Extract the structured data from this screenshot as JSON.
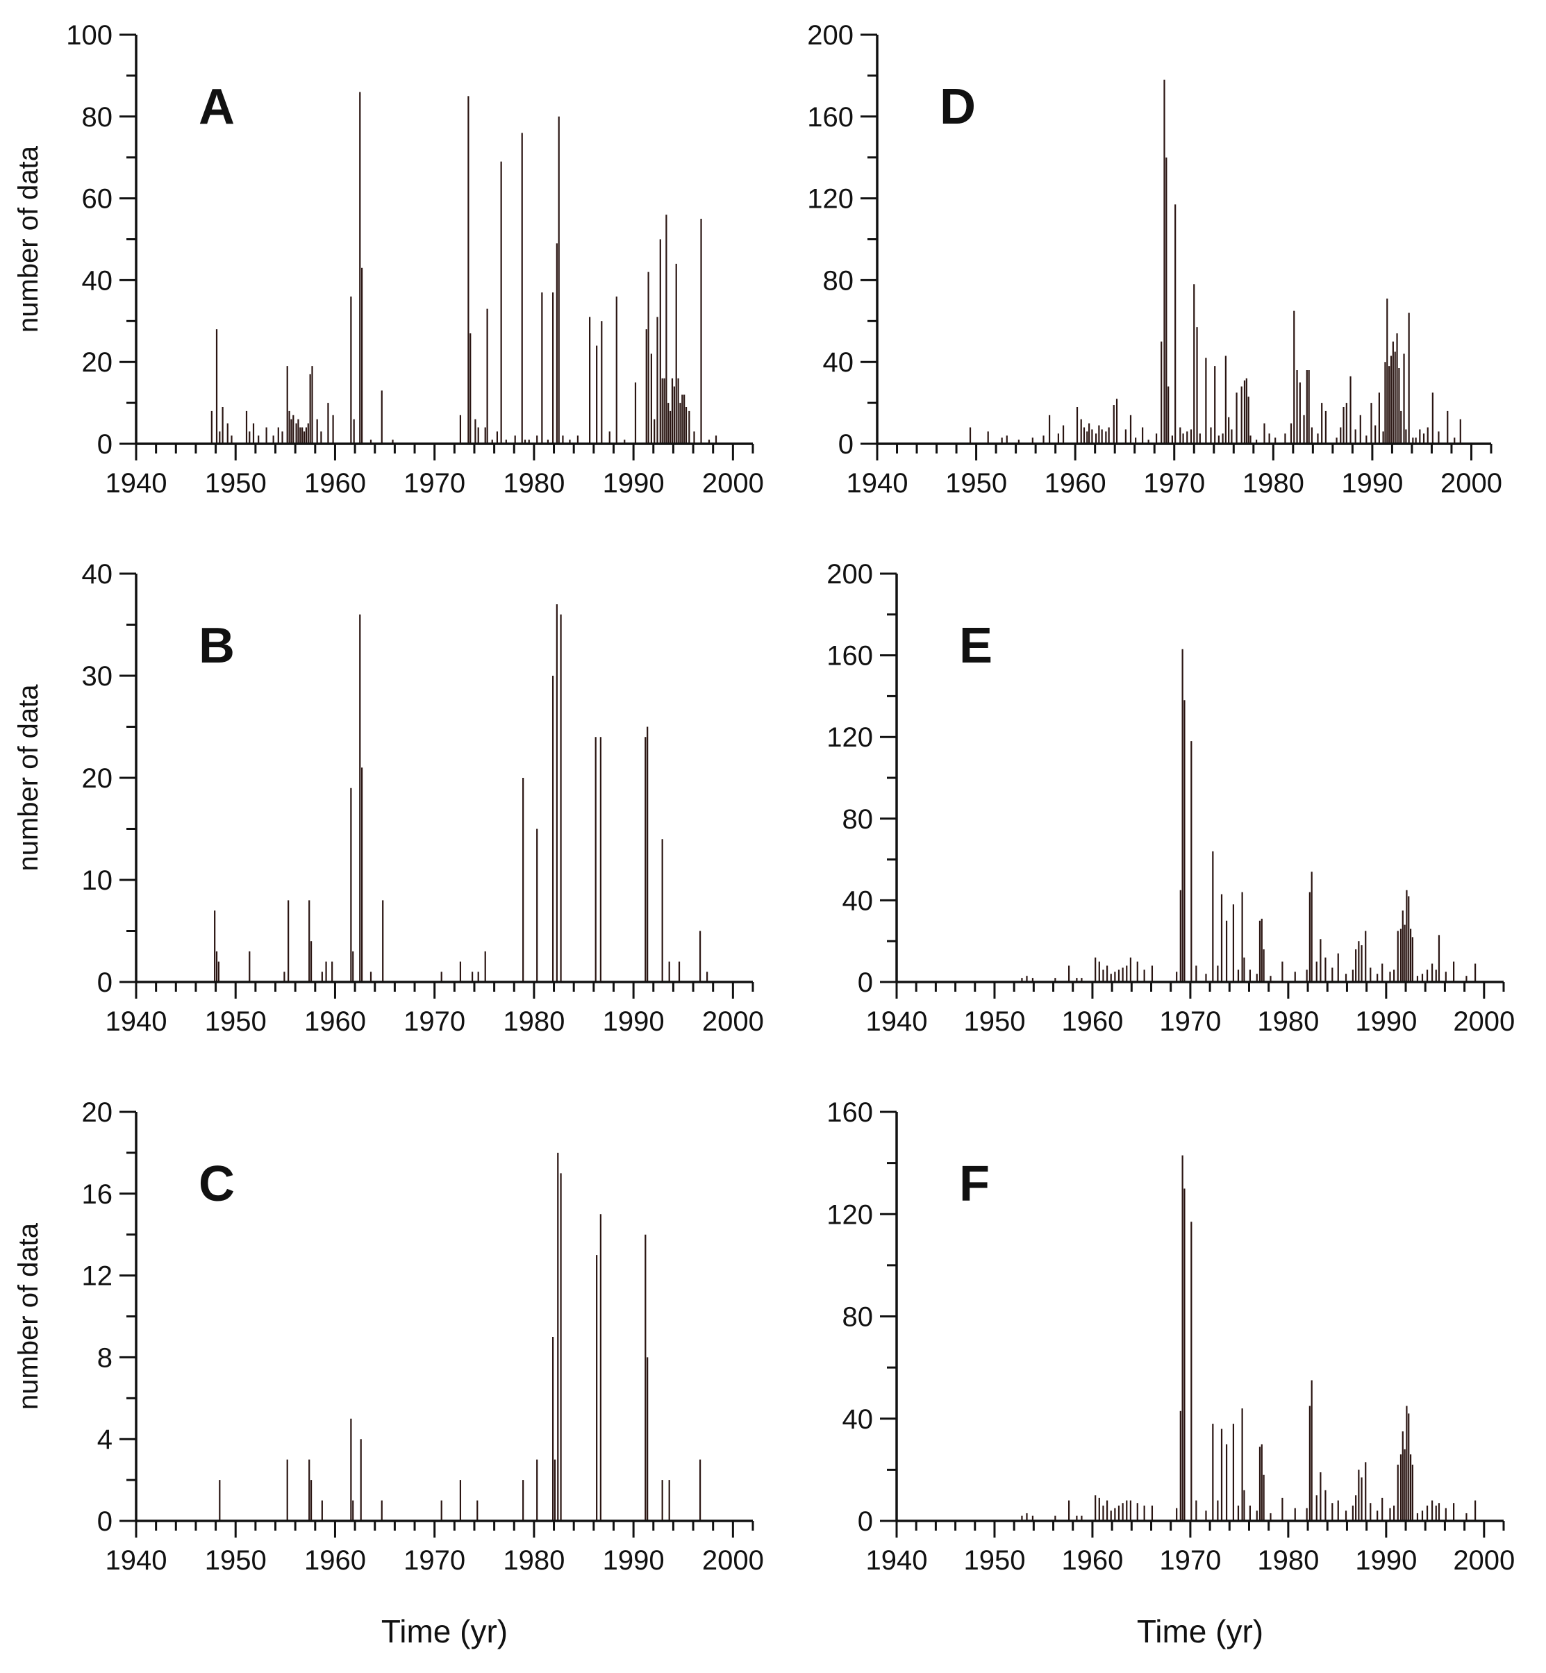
{
  "x_axis_label": "Time (yr)",
  "chart_data": [
    {
      "panel": "A",
      "type": "bar",
      "title": "A",
      "xlabel": "",
      "ylabel": "number of data",
      "xlim": [
        1940,
        2002
      ],
      "ylim": [
        0,
        100
      ],
      "xticks": [
        1940,
        1950,
        1960,
        1970,
        1980,
        1990,
        2000
      ],
      "yticks": [
        0,
        20,
        40,
        60,
        80,
        100
      ],
      "bar_color": "#2a1512",
      "x": [
        1947.6,
        1948.1,
        1948.4,
        1948.7,
        1949.2,
        1949.6,
        1951.1,
        1951.4,
        1951.8,
        1952.3,
        1953.1,
        1953.8,
        1954.3,
        1954.7,
        1955.2,
        1955.4,
        1955.6,
        1955.8,
        1956.1,
        1956.3,
        1956.5,
        1956.7,
        1956.9,
        1957.1,
        1957.3,
        1957.5,
        1957.7,
        1958.2,
        1958.6,
        1959.3,
        1959.8,
        1961.6,
        1961.9,
        1962.5,
        1962.7,
        1963.6,
        1964.7,
        1965.8,
        1972.6,
        1973.4,
        1973.6,
        1974.1,
        1974.4,
        1975.1,
        1975.3,
        1975.8,
        1976.3,
        1976.7,
        1977.2,
        1978.1,
        1978.8,
        1979.1,
        1979.5,
        1980.3,
        1980.8,
        1981.4,
        1981.9,
        1982.3,
        1982.5,
        1982.9,
        1983.6,
        1984.4,
        1985.6,
        1986.3,
        1986.8,
        1987.6,
        1988.3,
        1989.1,
        1990.2,
        1991.3,
        1991.5,
        1991.8,
        1992.1,
        1992.4,
        1992.7,
        1992.9,
        1993.1,
        1993.3,
        1993.5,
        1993.7,
        1993.9,
        1994.1,
        1994.3,
        1994.5,
        1994.7,
        1994.9,
        1995.1,
        1995.3,
        1995.6,
        1996.1,
        1996.8,
        1997.6,
        1998.3
      ],
      "values": [
        8,
        28,
        3,
        9,
        5,
        2,
        8,
        3,
        5,
        2,
        4,
        2,
        4,
        3,
        19,
        8,
        6,
        7,
        5,
        6,
        4,
        4,
        3,
        4,
        5,
        17,
        19,
        6,
        3,
        10,
        7,
        36,
        6,
        86,
        43,
        1,
        13,
        1,
        7,
        85,
        27,
        6,
        4,
        4,
        33,
        1,
        3,
        69,
        1,
        2,
        76,
        1,
        1,
        2,
        37,
        1,
        37,
        49,
        80,
        2,
        1,
        2,
        31,
        24,
        30,
        3,
        36,
        1,
        15,
        28,
        42,
        22,
        6,
        31,
        50,
        16,
        16,
        56,
        10,
        8,
        16,
        14,
        44,
        16,
        10,
        12,
        12,
        9,
        8,
        3,
        55,
        1,
        2
      ]
    },
    {
      "panel": "B",
      "type": "bar",
      "title": "B",
      "xlabel": "",
      "ylabel": "number of data",
      "xlim": [
        1940,
        2002
      ],
      "ylim": [
        0,
        40
      ],
      "xticks": [
        1940,
        1950,
        1960,
        1970,
        1980,
        1990,
        2000
      ],
      "yticks": [
        0,
        10,
        20,
        30,
        40
      ],
      "bar_color": "#2a1512",
      "x": [
        1947.9,
        1948.1,
        1948.3,
        1951.4,
        1954.9,
        1955.3,
        1957.4,
        1957.6,
        1958.7,
        1959.1,
        1959.7,
        1961.6,
        1961.8,
        1962.5,
        1962.7,
        1963.6,
        1964.8,
        1970.7,
        1972.6,
        1973.8,
        1974.4,
        1975.1,
        1978.9,
        1980.3,
        1981.9,
        1982.3,
        1982.7,
        1986.2,
        1986.7,
        1991.2,
        1991.4,
        1992.9,
        1993.6,
        1994.6,
        1996.7,
        1997.4
      ],
      "values": [
        7,
        3,
        2,
        3,
        1,
        8,
        8,
        4,
        1,
        2,
        2,
        19,
        3,
        36,
        21,
        1,
        8,
        1,
        2,
        1,
        1,
        3,
        20,
        15,
        30,
        37,
        36,
        24,
        24,
        24,
        25,
        14,
        2,
        2,
        5,
        1
      ]
    },
    {
      "panel": "C",
      "type": "bar",
      "title": "C",
      "xlabel": "Time (yr)",
      "ylabel": "number of data",
      "xlim": [
        1940,
        2002
      ],
      "ylim": [
        0,
        20
      ],
      "xticks": [
        1940,
        1950,
        1960,
        1970,
        1980,
        1990,
        2000
      ],
      "yticks": [
        0,
        4,
        8,
        12,
        16,
        20
      ],
      "bar_color": "#2a1512",
      "x": [
        1948.4,
        1955.2,
        1957.4,
        1957.6,
        1958.7,
        1961.6,
        1961.8,
        1962.6,
        1964.7,
        1970.7,
        1972.6,
        1974.3,
        1978.9,
        1980.3,
        1981.9,
        1982.1,
        1982.4,
        1982.7,
        1986.3,
        1986.7,
        1991.2,
        1991.4,
        1992.9,
        1993.6,
        1996.7
      ],
      "values": [
        2,
        3,
        3,
        2,
        1,
        5,
        1,
        4,
        1,
        1,
        2,
        1,
        2,
        3,
        9,
        3,
        18,
        17,
        13,
        15,
        14,
        8,
        2,
        2,
        3
      ]
    },
    {
      "panel": "D",
      "type": "bar",
      "title": "D",
      "xlabel": "",
      "ylabel": "",
      "xlim": [
        1940,
        2002
      ],
      "ylim": [
        0,
        200
      ],
      "xticks": [
        1940,
        1950,
        1960,
        1970,
        1980,
        1990,
        2000
      ],
      "yticks": [
        0,
        40,
        80,
        120,
        160,
        200
      ],
      "bar_color": "#2a1512",
      "x": [
        1949.4,
        1951.2,
        1952.6,
        1953.1,
        1954.3,
        1955.7,
        1956.8,
        1957.4,
        1958.3,
        1958.8,
        1960.2,
        1960.6,
        1960.9,
        1961.2,
        1961.4,
        1961.7,
        1962.1,
        1962.4,
        1962.7,
        1963.1,
        1963.4,
        1963.9,
        1964.2,
        1965.1,
        1965.6,
        1966.1,
        1966.8,
        1967.4,
        1968.2,
        1968.7,
        1969.0,
        1969.2,
        1969.4,
        1969.8,
        1970.1,
        1970.6,
        1970.9,
        1971.3,
        1971.7,
        1972.0,
        1972.3,
        1972.6,
        1973.2,
        1973.7,
        1974.1,
        1974.5,
        1974.9,
        1975.2,
        1975.5,
        1975.8,
        1976.3,
        1976.8,
        1977.1,
        1977.3,
        1977.5,
        1977.7,
        1978.3,
        1979.1,
        1979.6,
        1980.2,
        1981.2,
        1981.8,
        1982.1,
        1982.4,
        1982.7,
        1983.1,
        1983.4,
        1983.6,
        1983.9,
        1984.5,
        1984.9,
        1985.3,
        1986.4,
        1986.8,
        1987.1,
        1987.4,
        1987.8,
        1988.3,
        1988.8,
        1989.4,
        1989.9,
        1990.3,
        1990.7,
        1991.1,
        1991.3,
        1991.5,
        1991.7,
        1991.9,
        1992.1,
        1992.3,
        1992.5,
        1992.7,
        1992.9,
        1993.2,
        1993.4,
        1993.7,
        1994.1,
        1994.4,
        1994.8,
        1995.2,
        1995.6,
        1996.1,
        1996.7,
        1997.6,
        1998.3,
        1998.9
      ],
      "values": [
        8,
        6,
        3,
        4,
        2,
        3,
        4,
        14,
        5,
        9,
        18,
        12,
        8,
        6,
        10,
        7,
        5,
        9,
        7,
        6,
        8,
        19,
        22,
        7,
        14,
        3,
        8,
        2,
        5,
        50,
        178,
        140,
        28,
        4,
        117,
        8,
        5,
        6,
        7,
        78,
        57,
        5,
        42,
        8,
        38,
        4,
        5,
        43,
        13,
        7,
        25,
        28,
        31,
        32,
        23,
        4,
        2,
        10,
        5,
        3,
        5,
        10,
        65,
        36,
        30,
        14,
        36,
        36,
        8,
        5,
        20,
        16,
        3,
        8,
        18,
        20,
        33,
        7,
        14,
        4,
        20,
        9,
        25,
        6,
        40,
        71,
        38,
        43,
        50,
        45,
        54,
        37,
        16,
        44,
        7,
        64,
        3,
        3,
        7,
        5,
        8,
        25,
        6,
        16,
        3,
        12
      ]
    },
    {
      "panel": "E",
      "type": "bar",
      "title": "E",
      "xlabel": "",
      "ylabel": "",
      "xlim": [
        1940,
        2002
      ],
      "ylim": [
        0,
        200
      ],
      "xticks": [
        1940,
        1950,
        1960,
        1970,
        1980,
        1990,
        2000
      ],
      "yticks": [
        0,
        40,
        80,
        120,
        160,
        200
      ],
      "bar_color": "#2a1512",
      "x": [
        1952.8,
        1953.3,
        1953.9,
        1956.2,
        1957.6,
        1958.4,
        1958.9,
        1960.3,
        1960.7,
        1961.1,
        1961.5,
        1961.9,
        1962.3,
        1962.7,
        1963.1,
        1963.5,
        1963.9,
        1964.6,
        1965.3,
        1966.1,
        1968.6,
        1969.0,
        1969.2,
        1969.4,
        1970.1,
        1970.6,
        1971.6,
        1972.3,
        1972.8,
        1973.2,
        1973.7,
        1974.4,
        1974.9,
        1975.3,
        1975.5,
        1976.1,
        1976.8,
        1977.1,
        1977.3,
        1977.5,
        1978.2,
        1979.4,
        1980.7,
        1981.9,
        1982.2,
        1982.4,
        1982.9,
        1983.3,
        1983.8,
        1984.5,
        1985.1,
        1985.9,
        1986.6,
        1986.9,
        1987.2,
        1987.5,
        1987.9,
        1988.4,
        1989.1,
        1989.6,
        1990.4,
        1990.8,
        1991.2,
        1991.5,
        1991.7,
        1991.9,
        1992.1,
        1992.3,
        1992.5,
        1992.7,
        1993.2,
        1993.7,
        1994.2,
        1994.7,
        1995.1,
        1995.4,
        1996.1,
        1996.9,
        1998.2,
        1999.1
      ],
      "values": [
        2,
        3,
        2,
        2,
        8,
        2,
        2,
        12,
        10,
        6,
        8,
        4,
        5,
        6,
        7,
        8,
        12,
        10,
        6,
        8,
        5,
        45,
        163,
        138,
        118,
        8,
        4,
        64,
        8,
        43,
        30,
        38,
        6,
        44,
        12,
        6,
        4,
        30,
        31,
        16,
        3,
        10,
        5,
        6,
        44,
        54,
        10,
        21,
        12,
        7,
        14,
        4,
        6,
        16,
        20,
        18,
        25,
        7,
        4,
        9,
        5,
        6,
        25,
        26,
        35,
        28,
        45,
        42,
        26,
        22,
        3,
        4,
        6,
        9,
        6,
        23,
        5,
        10,
        3,
        9
      ]
    },
    {
      "panel": "F",
      "type": "bar",
      "title": "F",
      "xlabel": "Time (yr)",
      "ylabel": "",
      "xlim": [
        1940,
        2002
      ],
      "ylim": [
        0,
        160
      ],
      "xticks": [
        1940,
        1950,
        1960,
        1970,
        1980,
        1990,
        2000
      ],
      "yticks": [
        0,
        40,
        80,
        120,
        160
      ],
      "bar_color": "#2a1512",
      "x": [
        1952.8,
        1953.3,
        1953.9,
        1956.2,
        1957.6,
        1958.4,
        1958.9,
        1960.3,
        1960.7,
        1961.1,
        1961.5,
        1961.9,
        1962.3,
        1962.7,
        1963.1,
        1963.5,
        1963.9,
        1964.6,
        1965.3,
        1966.1,
        1968.6,
        1969.0,
        1969.2,
        1969.4,
        1970.1,
        1970.6,
        1971.6,
        1972.3,
        1972.8,
        1973.2,
        1973.7,
        1974.4,
        1974.9,
        1975.3,
        1975.5,
        1976.1,
        1976.8,
        1977.1,
        1977.3,
        1977.5,
        1978.2,
        1979.4,
        1980.7,
        1981.9,
        1982.2,
        1982.4,
        1982.9,
        1983.3,
        1983.8,
        1984.5,
        1985.1,
        1985.9,
        1986.6,
        1986.9,
        1987.2,
        1987.5,
        1987.9,
        1988.4,
        1989.1,
        1989.6,
        1990.4,
        1990.8,
        1991.2,
        1991.5,
        1991.7,
        1991.9,
        1992.1,
        1992.3,
        1992.5,
        1992.7,
        1993.2,
        1993.7,
        1994.2,
        1994.7,
        1995.1,
        1995.4,
        1996.1,
        1996.9,
        1998.2,
        1999.1
      ],
      "values": [
        2,
        3,
        2,
        2,
        8,
        2,
        2,
        10,
        9,
        6,
        8,
        4,
        5,
        6,
        7,
        8,
        8,
        7,
        6,
        6,
        5,
        43,
        143,
        130,
        117,
        8,
        4,
        38,
        8,
        36,
        30,
        38,
        6,
        44,
        12,
        6,
        4,
        29,
        30,
        18,
        3,
        9,
        5,
        5,
        45,
        55,
        10,
        19,
        12,
        7,
        8,
        4,
        6,
        10,
        20,
        17,
        23,
        7,
        4,
        9,
        5,
        6,
        22,
        26,
        35,
        28,
        45,
        42,
        26,
        22,
        3,
        4,
        6,
        8,
        6,
        7,
        5,
        7,
        3,
        8
      ]
    }
  ]
}
